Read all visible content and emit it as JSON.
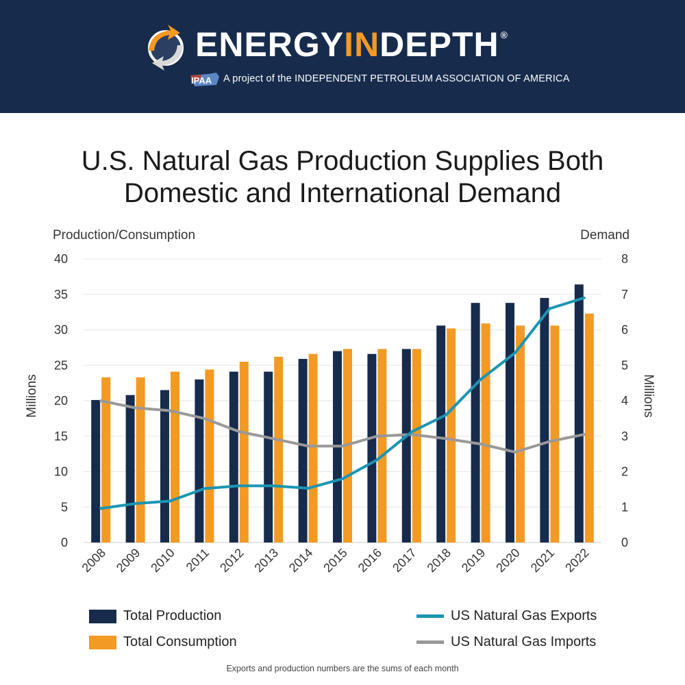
{
  "header": {
    "brand_prefix": "ENERGY",
    "brand_accent": "IN",
    "brand_suffix": "DEPTH",
    "brand_mark": "®",
    "badge": "IPAA",
    "tagline": "A project of the INDEPENDENT PETROLEUM ASSOCIATION OF AMERICA",
    "logo_icon": "globe-arrows-icon",
    "colors": {
      "background": "#172b4c",
      "accent": "#f29a24",
      "text": "#ffffff"
    }
  },
  "chart_data": {
    "type": "bar",
    "title": [
      "U.S. Natural Gas Production Supplies Both",
      "Domestic and International Demand"
    ],
    "categories": [
      "2008",
      "2009",
      "2010",
      "2011",
      "2012",
      "2013",
      "2014",
      "2015",
      "2016",
      "2017",
      "2018",
      "2019",
      "2020",
      "2021",
      "2022"
    ],
    "left_axis": {
      "label": "Production/Consumption",
      "unit": "Millions",
      "range": [
        0,
        40
      ],
      "ticks": [
        0,
        5,
        10,
        15,
        20,
        25,
        30,
        35,
        40
      ]
    },
    "right_axis": {
      "label": "Demand",
      "unit": "Millions",
      "range": [
        0,
        8
      ],
      "ticks": [
        0,
        1,
        2,
        3,
        4,
        5,
        6,
        7,
        8
      ]
    },
    "grid": true,
    "legend_position": "bottom",
    "series": [
      {
        "name": "Total Production",
        "type": "bar",
        "axis": "left",
        "color": "#172b4c",
        "values": [
          20.1,
          20.8,
          21.5,
          23.0,
          24.1,
          24.1,
          25.9,
          27.0,
          26.6,
          27.3,
          30.6,
          33.8,
          33.8,
          34.5,
          36.4
        ]
      },
      {
        "name": "Total Consumption",
        "type": "bar",
        "axis": "left",
        "color": "#f29a24",
        "values": [
          23.3,
          23.3,
          24.1,
          24.4,
          25.5,
          26.2,
          26.6,
          27.3,
          27.3,
          27.3,
          30.2,
          30.9,
          30.6,
          30.6,
          32.3
        ]
      },
      {
        "name": "US Natural Gas Exports",
        "type": "line",
        "axis": "right",
        "color": "#1b95b3",
        "values": [
          0.96,
          1.1,
          1.17,
          1.52,
          1.6,
          1.6,
          1.53,
          1.8,
          2.33,
          3.12,
          3.6,
          4.6,
          5.35,
          6.6,
          6.9
        ]
      },
      {
        "name": "US Natural Gas Imports",
        "type": "line",
        "axis": "right",
        "color": "#999999",
        "values": [
          4.0,
          3.8,
          3.72,
          3.5,
          3.13,
          2.93,
          2.72,
          2.72,
          3.0,
          3.05,
          2.93,
          2.78,
          2.55,
          2.85,
          3.05
        ]
      }
    ],
    "footnote": "Exports and production numbers are the sums of each month"
  }
}
